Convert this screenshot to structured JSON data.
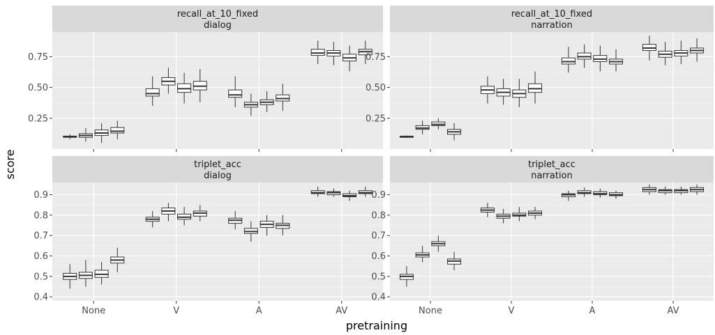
{
  "colors": {
    "panel_bg": "#ebebeb",
    "strip_bg": "#d9d9d9",
    "grid_major": "#ffffff",
    "box_fill": "#ffffff",
    "box_stroke": "#333333"
  },
  "chart_data": {
    "type": "box",
    "facet_layout": "2x2 grid, free y per row, shared x",
    "xlabel": "pretraining",
    "ylabel": "score",
    "categories": [
      "None",
      "V",
      "A",
      "AV"
    ],
    "boxes_per_category": 4,
    "grid": true,
    "panels": [
      {
        "strip": [
          "recall_at_10_fixed",
          "dialog"
        ],
        "ylim": [
          0.0,
          0.95
        ],
        "yticks": [
          0.25,
          0.5,
          0.75
        ],
        "ytick_labels": [
          "0.25",
          "0.50",
          "0.75"
        ],
        "boxes": [
          [
            [
              0.08,
              0.095,
              0.1,
              0.105,
              0.12
            ],
            [
              0.06,
              0.095,
              0.11,
              0.125,
              0.17
            ],
            [
              0.05,
              0.11,
              0.13,
              0.155,
              0.21
            ],
            [
              0.08,
              0.13,
              0.145,
              0.175,
              0.23
            ]
          ],
          [
            [
              0.35,
              0.43,
              0.45,
              0.49,
              0.59
            ],
            [
              0.45,
              0.52,
              0.55,
              0.58,
              0.66
            ],
            [
              0.37,
              0.46,
              0.49,
              0.53,
              0.62
            ],
            [
              0.38,
              0.48,
              0.51,
              0.55,
              0.65
            ]
          ],
          [
            [
              0.34,
              0.42,
              0.44,
              0.48,
              0.59
            ],
            [
              0.27,
              0.34,
              0.36,
              0.38,
              0.45
            ],
            [
              0.3,
              0.36,
              0.38,
              0.4,
              0.47
            ],
            [
              0.31,
              0.39,
              0.41,
              0.44,
              0.53
            ]
          ],
          [
            [
              0.69,
              0.76,
              0.78,
              0.81,
              0.88
            ],
            [
              0.68,
              0.755,
              0.78,
              0.8,
              0.87
            ],
            [
              0.63,
              0.715,
              0.74,
              0.77,
              0.84
            ],
            [
              0.69,
              0.765,
              0.79,
              0.81,
              0.88
            ]
          ]
        ]
      },
      {
        "strip": [
          "recall_at_10_fixed",
          "narration"
        ],
        "ylim": [
          0.0,
          0.95
        ],
        "yticks": [
          0.25,
          0.5,
          0.75
        ],
        "ytick_labels": [
          "0.25",
          "0.50",
          "0.75"
        ],
        "boxes": [
          [
            [
              0.09,
              0.095,
              0.1,
              0.105,
              0.11
            ],
            [
              0.12,
              0.16,
              0.17,
              0.19,
              0.23
            ],
            [
              0.16,
              0.19,
              0.2,
              0.22,
              0.25
            ],
            [
              0.07,
              0.12,
              0.14,
              0.16,
              0.21
            ]
          ],
          [
            [
              0.37,
              0.45,
              0.48,
              0.51,
              0.59
            ],
            [
              0.36,
              0.43,
              0.46,
              0.49,
              0.57
            ],
            [
              0.34,
              0.42,
              0.45,
              0.48,
              0.57
            ],
            [
              0.37,
              0.46,
              0.49,
              0.53,
              0.63
            ]
          ],
          [
            [
              0.62,
              0.69,
              0.71,
              0.74,
              0.83
            ],
            [
              0.66,
              0.73,
              0.75,
              0.78,
              0.85
            ],
            [
              0.63,
              0.71,
              0.73,
              0.76,
              0.84
            ],
            [
              0.63,
              0.69,
              0.71,
              0.73,
              0.81
            ]
          ],
          [
            [
              0.72,
              0.8,
              0.82,
              0.85,
              0.92
            ],
            [
              0.68,
              0.745,
              0.77,
              0.795,
              0.87
            ],
            [
              0.69,
              0.755,
              0.78,
              0.8,
              0.88
            ],
            [
              0.71,
              0.78,
              0.8,
              0.82,
              0.9
            ]
          ]
        ]
      },
      {
        "strip": [
          "triplet_acc",
          "dialog"
        ],
        "ylim": [
          0.38,
          0.96
        ],
        "yticks": [
          0.4,
          0.5,
          0.6,
          0.7,
          0.8,
          0.9
        ],
        "ytick_labels": [
          "0.4",
          "0.5",
          "0.6",
          "0.7",
          "0.8",
          "0.9"
        ],
        "boxes": [
          [
            [
              0.44,
              0.485,
              0.5,
              0.515,
              0.56
            ],
            [
              0.45,
              0.49,
              0.505,
              0.52,
              0.58
            ],
            [
              0.46,
              0.495,
              0.51,
              0.53,
              0.57
            ],
            [
              0.52,
              0.565,
              0.58,
              0.595,
              0.64
            ]
          ],
          [
            [
              0.74,
              0.77,
              0.78,
              0.79,
              0.82
            ],
            [
              0.77,
              0.805,
              0.82,
              0.835,
              0.86
            ],
            [
              0.75,
              0.78,
              0.79,
              0.805,
              0.84
            ],
            [
              0.77,
              0.795,
              0.81,
              0.82,
              0.85
            ]
          ],
          [
            [
              0.73,
              0.76,
              0.775,
              0.785,
              0.82
            ],
            [
              0.67,
              0.71,
              0.72,
              0.735,
              0.77
            ],
            [
              0.7,
              0.74,
              0.755,
              0.77,
              0.8
            ],
            [
              0.7,
              0.735,
              0.75,
              0.76,
              0.8
            ]
          ],
          [
            [
              0.89,
              0.905,
              0.91,
              0.92,
              0.94
            ],
            [
              0.89,
              0.9,
              0.91,
              0.915,
              0.93
            ],
            [
              0.87,
              0.89,
              0.895,
              0.905,
              0.92
            ],
            [
              0.89,
              0.905,
              0.91,
              0.92,
              0.94
            ]
          ]
        ]
      },
      {
        "strip": [
          "triplet_acc",
          "narration"
        ],
        "ylim": [
          0.38,
          0.96
        ],
        "yticks": [
          0.4,
          0.5,
          0.6,
          0.7,
          0.8,
          0.9
        ],
        "ytick_labels": [
          "0.4",
          "0.5",
          "0.6",
          "0.7",
          "0.8",
          "0.9"
        ],
        "boxes": [
          [
            [
              0.45,
              0.485,
              0.5,
              0.51,
              0.55
            ],
            [
              0.57,
              0.595,
              0.605,
              0.615,
              0.65
            ],
            [
              0.62,
              0.65,
              0.66,
              0.67,
              0.7
            ],
            [
              0.53,
              0.56,
              0.575,
              0.585,
              0.62
            ]
          ],
          [
            [
              0.79,
              0.815,
              0.825,
              0.835,
              0.86
            ],
            [
              0.76,
              0.785,
              0.795,
              0.805,
              0.83
            ],
            [
              0.77,
              0.795,
              0.8,
              0.81,
              0.84
            ],
            [
              0.78,
              0.8,
              0.81,
              0.82,
              0.84
            ]
          ],
          [
            [
              0.87,
              0.89,
              0.9,
              0.905,
              0.92
            ],
            [
              0.89,
              0.905,
              0.91,
              0.92,
              0.935
            ],
            [
              0.885,
              0.9,
              0.905,
              0.915,
              0.93
            ],
            [
              0.88,
              0.895,
              0.9,
              0.91,
              0.92
            ]
          ],
          [
            [
              0.9,
              0.915,
              0.925,
              0.935,
              0.95
            ],
            [
              0.9,
              0.91,
              0.92,
              0.925,
              0.94
            ],
            [
              0.9,
              0.91,
              0.92,
              0.925,
              0.94
            ],
            [
              0.9,
              0.915,
              0.925,
              0.935,
              0.95
            ]
          ]
        ]
      }
    ]
  }
}
